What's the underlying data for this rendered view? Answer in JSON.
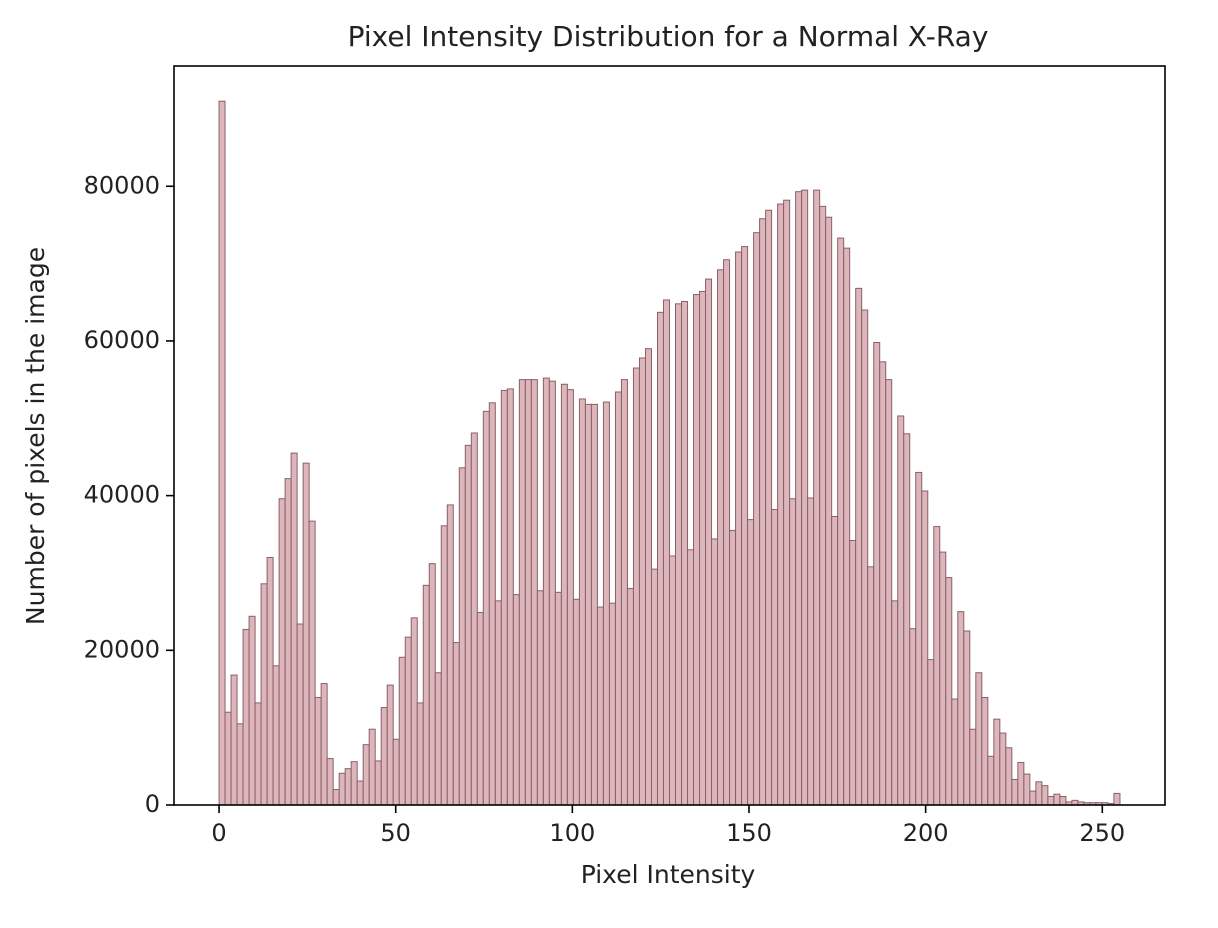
{
  "chart_data": {
    "type": "histogram",
    "title": "Pixel Intensity Distribution for a Normal X-Ray",
    "xlabel": "Pixel Intensity",
    "ylabel": "Number of pixels in the image",
    "color": "#dcb6ba",
    "edgecolor": "#8a6068",
    "bins": [
      0,
      1.7,
      3.4,
      5.1,
      6.8,
      8.5,
      10.2,
      11.9,
      13.6,
      15.3,
      17,
      18.7,
      20.4,
      22.1,
      23.8,
      25.5,
      27.2,
      28.9,
      30.6,
      32.3,
      34,
      35.7,
      37.4,
      39.1,
      40.8,
      42.5,
      44.2,
      45.9,
      47.6,
      49.3,
      51,
      52.7,
      54.4,
      56.1,
      57.8,
      59.5,
      61.2,
      62.9,
      64.6,
      66.3,
      68,
      69.7,
      71.4,
      73.1,
      74.8,
      76.5,
      78.2,
      79.9,
      81.6,
      83.3,
      85,
      86.7,
      88.4,
      90.1,
      91.8,
      93.5,
      95.2,
      96.9,
      98.6,
      100.3,
      102,
      103.7,
      105.4,
      107.1,
      108.8,
      110.5,
      112.2,
      113.9,
      115.6,
      117.3,
      119,
      120.7,
      122.4,
      124.1,
      125.8,
      127.5,
      129.2,
      130.9,
      132.6,
      134.3,
      136,
      137.7,
      139.4,
      141.1,
      142.8,
      144.5,
      146.2,
      147.9,
      149.6,
      151.3,
      153,
      154.7,
      156.4,
      158.1,
      159.8,
      161.5,
      163.2,
      164.9,
      166.6,
      168.3,
      170,
      171.7,
      173.4,
      175.1,
      176.8,
      178.5,
      180.2,
      181.9,
      183.6,
      185.3,
      187,
      188.7,
      190.4,
      192.1,
      193.8,
      195.5,
      197.2,
      198.9,
      200.6,
      202.3,
      204,
      205.7,
      207.4,
      209.1,
      210.8,
      212.5,
      214.2,
      215.9,
      217.6,
      219.3,
      221,
      222.7,
      224.4,
      226.1,
      227.8,
      229.5,
      231.2,
      232.9,
      234.6,
      236.3,
      238,
      239.7,
      241.4,
      243.1,
      244.8,
      246.5,
      248.2,
      249.9,
      251.6,
      253.3,
      255
    ],
    "counts": [
      91000,
      12000,
      16800,
      10500,
      22700,
      24400,
      13200,
      28600,
      32000,
      18000,
      39600,
      42200,
      45500,
      23400,
      44200,
      36700,
      13900,
      15700,
      6000,
      2000,
      4100,
      4700,
      5600,
      3100,
      7800,
      9800,
      5700,
      12600,
      15500,
      8500,
      19100,
      21700,
      24200,
      13200,
      28400,
      31200,
      17100,
      36100,
      38800,
      21000,
      43600,
      46500,
      48100,
      24900,
      50900,
      52000,
      26400,
      53600,
      53800,
      27200,
      55000,
      55000,
      55000,
      27700,
      55200,
      54800,
      27500,
      54400,
      53700,
      26600,
      52500,
      51800,
      51800,
      25600,
      52100,
      26100,
      53400,
      55000,
      28000,
      56500,
      57800,
      59000,
      30500,
      63700,
      65300,
      32200,
      64800,
      65100,
      33000,
      66000,
      66400,
      68000,
      34400,
      69200,
      70500,
      35500,
      71500,
      72200,
      36900,
      74000,
      75800,
      76900,
      38200,
      77700,
      78200,
      39600,
      79300,
      79500,
      39700,
      79500,
      77400,
      76000,
      37300,
      73300,
      72000,
      34200,
      66800,
      64000,
      30800,
      59800,
      57300,
      55000,
      26400,
      50300,
      48000,
      22800,
      43000,
      40600,
      18800,
      36000,
      32700,
      29400,
      13700,
      25000,
      22500,
      9800,
      17100,
      13900,
      6300,
      11100,
      9300,
      7400,
      3300,
      5500,
      4000,
      1800,
      3000,
      2500,
      1100,
      1400,
      1100,
      400,
      600,
      400,
      300,
      300,
      300,
      300,
      200,
      1500
    ],
    "xlim": [
      -12.75,
      267.75
    ],
    "xticks": [
      0,
      50,
      100,
      150,
      200,
      250
    ],
    "ylim": [
      0,
      95550
    ],
    "yticks": [
      0,
      20000,
      40000,
      60000,
      80000
    ]
  }
}
